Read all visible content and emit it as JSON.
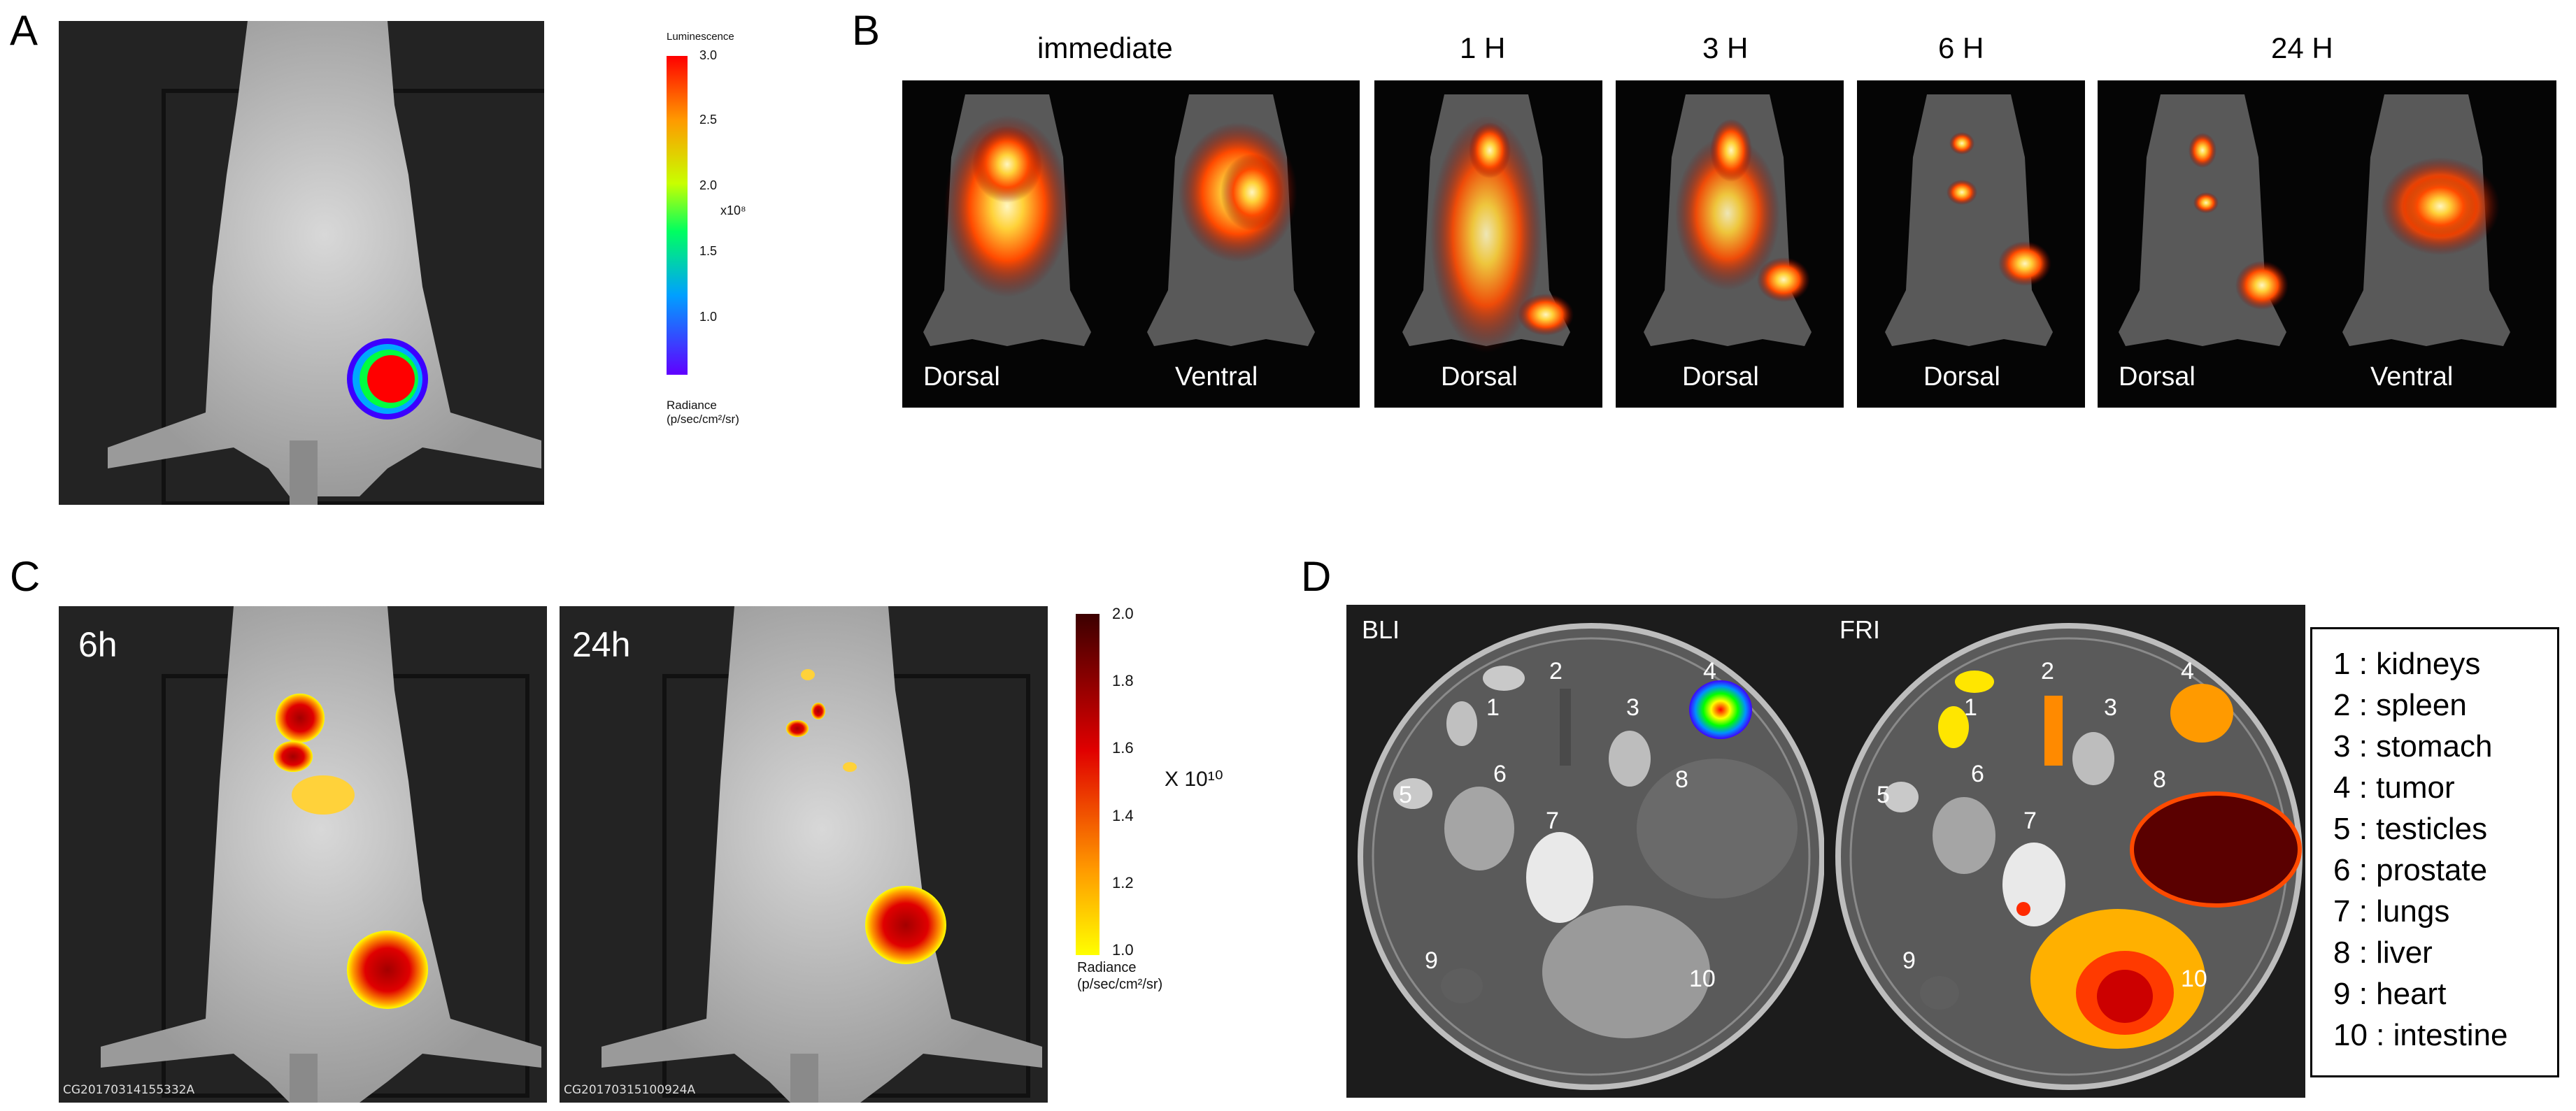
{
  "panels": {
    "a": {
      "label": "A"
    },
    "b": {
      "label": "B"
    },
    "c": {
      "label": "C"
    },
    "d": {
      "label": "D"
    }
  },
  "panel_a": {
    "colorbar": {
      "title": "Luminescence",
      "ticks": [
        "3.0",
        "2.5",
        "2.0",
        "1.5",
        "1.0"
      ],
      "multiplier": "x10⁸",
      "unit_line1": "Radiance",
      "unit_line2": "(p/sec/cm²/sr)"
    }
  },
  "panel_b": {
    "timepoints": [
      "immediate",
      "1 H",
      "3 H",
      "6 H",
      "24 H"
    ],
    "views": [
      "Dorsal",
      "Ventral",
      "Dorsal",
      "Dorsal",
      "Dorsal",
      "Dorsal",
      "Ventral"
    ]
  },
  "panel_c": {
    "images": [
      {
        "time": "6h",
        "code": "CG20170314155332A"
      },
      {
        "time": "24h",
        "code": "CG20170315100924A"
      }
    ],
    "colorbar": {
      "ticks": [
        "2.0",
        "1.8",
        "1.6",
        "1.4",
        "1.2",
        "1.0"
      ],
      "multiplier": "X 10¹⁰",
      "unit_line1": "Radiance",
      "unit_line2": "(p/sec/cm²/sr)"
    }
  },
  "panel_d": {
    "images": [
      {
        "label": "BLI"
      },
      {
        "label": "FRI"
      }
    ],
    "organ_numbers": [
      "1",
      "2",
      "3",
      "4",
      "5",
      "6",
      "7",
      "8",
      "9",
      "10"
    ],
    "legend": [
      "1 : kidneys",
      "2 : spleen",
      "3 : stomach",
      "4 : tumor",
      "5 : testicles",
      "6 : prostate",
      "7 : lungs",
      "8 : liver",
      "9 : heart",
      "10 : intestine"
    ]
  },
  "colors": {
    "heat_hot": "#ffffff",
    "heat_mid": "#ff3300",
    "heat_dark": "#3a0000",
    "background_dark": "#0a0a0a"
  }
}
